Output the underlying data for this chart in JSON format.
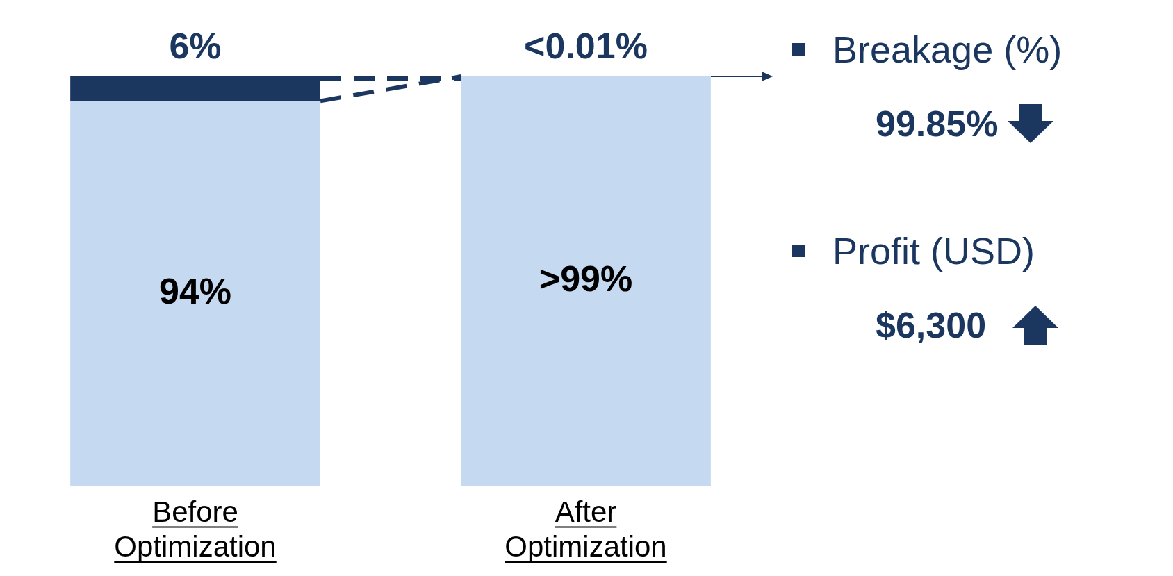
{
  "chart_data": {
    "type": "bar",
    "stacked": true,
    "tick_labels": "x",
    "grid": false,
    "legend": false,
    "categories": [
      "Before Optimization",
      "After Optimization"
    ],
    "series": [
      {
        "color": "#c5d9f0",
        "values": [
          94,
          99.99
        ],
        "value_labels": [
          "94%",
          ">99%"
        ]
      },
      {
        "color": "#1b3760",
        "values": [
          6,
          0.01
        ],
        "value_labels": [
          "6%",
          "<0.01%"
        ]
      }
    ],
    "annotations": [
      "Breakage (%)",
      "99.85%",
      "Profit (USD)",
      "$6,300"
    ]
  }
}
